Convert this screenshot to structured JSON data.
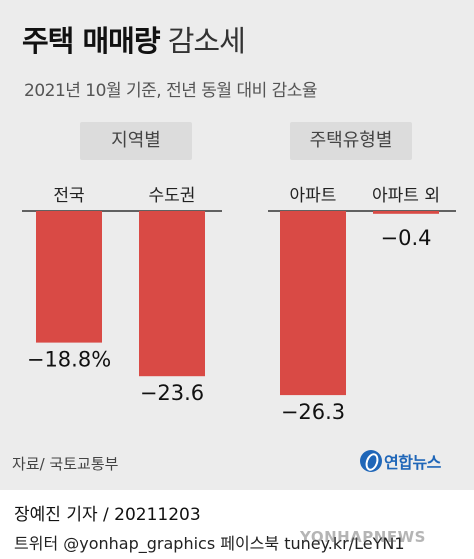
{
  "header": {
    "title_bold": "주택 매매량",
    "title_light": "감소세",
    "subtitle": "2021년 10월 기준, 전년 동월 대비 감소율"
  },
  "chart_data": {
    "type": "bar",
    "title": "주택 매매량 감소세",
    "subtitle": "2021년 10월 기준, 전년 동월 대비 감소율",
    "unit": "%",
    "groups": [
      {
        "name": "지역별",
        "categories": [
          "전국",
          "수도권"
        ],
        "values": [
          -18.8,
          -23.6
        ],
        "value_labels": [
          "−18.8%",
          "−23.6"
        ]
      },
      {
        "name": "주택유형별",
        "categories": [
          "아파트",
          "아파트 외"
        ],
        "values": [
          -26.3,
          -0.4
        ],
        "value_labels": [
          "−26.3",
          "−0.4"
        ]
      }
    ],
    "bar_color": "#d94a45",
    "grid": false,
    "legend": "none"
  },
  "footer": {
    "source": "자료/ 국토교통부",
    "logo_text": "연합뉴스",
    "credit": "장예진 기자 / 20211203",
    "social": "트위터 @yonhap_graphics  페이스북 tuney.kr/LeYN1",
    "watermark": "YONHAPNEWS"
  }
}
